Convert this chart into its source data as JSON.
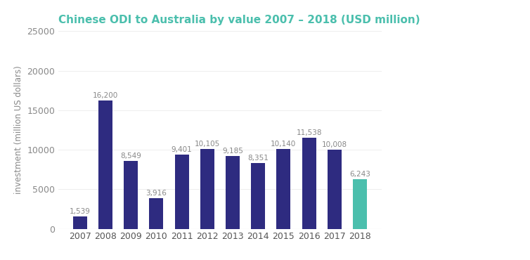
{
  "title": "Chinese ODI to Australia by value 2007 – 2018 (USD million)",
  "ylabel": "investment (million US dollars)",
  "categories": [
    "2007",
    "2008",
    "2009",
    "2010",
    "2011",
    "2012",
    "2013",
    "2014",
    "2015",
    "2016",
    "2017",
    "2018"
  ],
  "values": [
    1539,
    16200,
    8549,
    3916,
    9401,
    10105,
    9185,
    8351,
    10140,
    11538,
    10008,
    6243
  ],
  "bar_colors": [
    "#2e2b80",
    "#2e2b80",
    "#2e2b80",
    "#2e2b80",
    "#2e2b80",
    "#2e2b80",
    "#2e2b80",
    "#2e2b80",
    "#2e2b80",
    "#2e2b80",
    "#2e2b80",
    "#4bbfad"
  ],
  "title_color": "#4bbfad",
  "value_label_color": "#888888",
  "ylabel_color": "#888888",
  "ytick_color": "#888888",
  "xtick_color": "#555555",
  "ylim": [
    0,
    25000
  ],
  "yticks": [
    0,
    5000,
    10000,
    15000,
    20000,
    25000
  ],
  "title_fontsize": 11,
  "ylabel_fontsize": 8.5,
  "tick_fontsize": 9,
  "value_fontsize": 7.5,
  "background_color": "#ffffff",
  "bar_width": 0.55
}
